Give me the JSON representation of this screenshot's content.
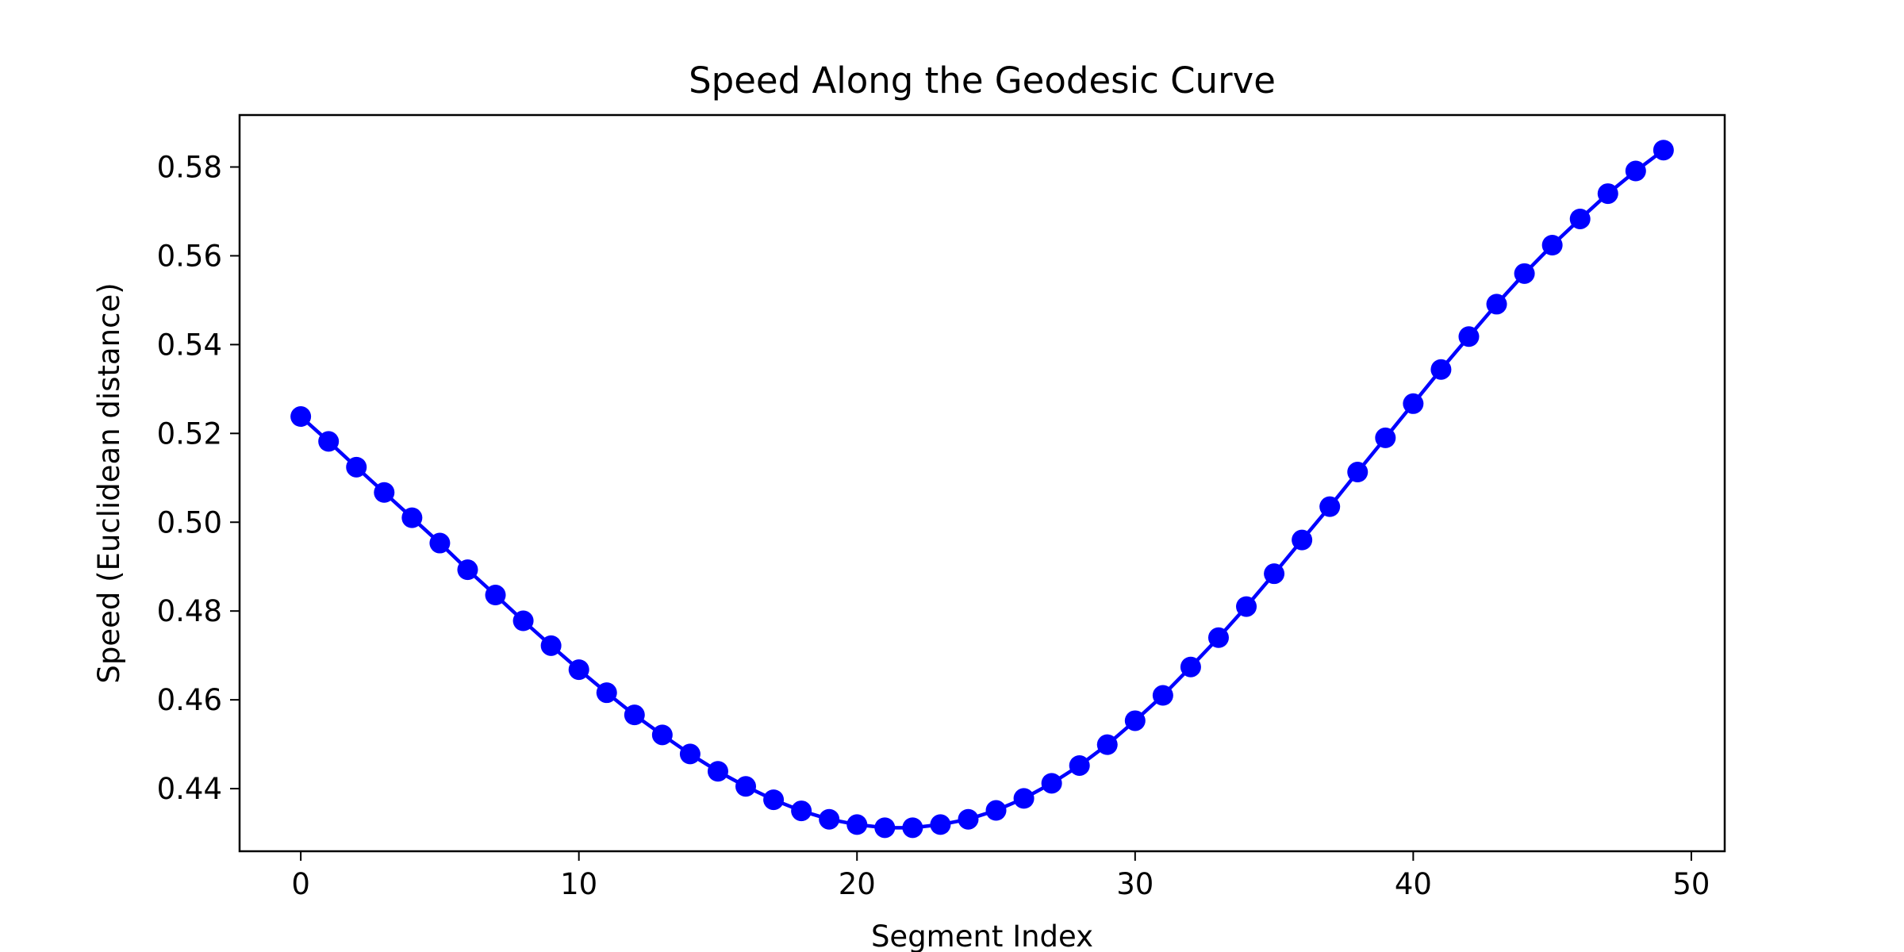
{
  "chart_data": {
    "type": "line",
    "title": "Speed Along the Geodesic Curve",
    "xlabel": "Segment Index",
    "ylabel": "Speed (Euclidean distance)",
    "xlim": [
      -2.2,
      51.2
    ],
    "ylim": [
      0.4259,
      0.5917
    ],
    "x_ticks": [
      0,
      10,
      20,
      30,
      40,
      50
    ],
    "y_ticks": [
      0.44,
      0.46,
      0.48,
      0.5,
      0.52,
      0.54,
      0.56,
      0.58
    ],
    "x_tick_labels": [
      "0",
      "10",
      "20",
      "30",
      "40",
      "50"
    ],
    "y_tick_labels": [
      "0.44",
      "0.46",
      "0.48",
      "0.50",
      "0.52",
      "0.54",
      "0.56",
      "0.58"
    ],
    "grid": false,
    "series": [
      {
        "color": "#0000ff",
        "marker": "circle",
        "x": [
          0,
          1,
          2,
          3,
          4,
          5,
          6,
          7,
          8,
          9,
          10,
          11,
          12,
          13,
          14,
          15,
          16,
          17,
          18,
          19,
          20,
          21,
          22,
          23,
          24,
          25,
          26,
          27,
          28,
          29,
          30,
          31,
          32,
          33,
          34,
          35,
          36,
          37,
          38,
          39,
          40,
          41,
          42,
          43,
          44,
          45,
          46,
          47,
          48,
          49
        ],
        "values": [
          0.5238,
          0.5182,
          0.5124,
          0.5067,
          0.501,
          0.4953,
          0.4893,
          0.4836,
          0.4778,
          0.4722,
          0.4668,
          0.4616,
          0.4566,
          0.4521,
          0.4478,
          0.4439,
          0.4405,
          0.4375,
          0.435,
          0.4331,
          0.4319,
          0.4312,
          0.4312,
          0.4319,
          0.4331,
          0.4351,
          0.4378,
          0.4412,
          0.4452,
          0.4499,
          0.4553,
          0.461,
          0.4674,
          0.474,
          0.481,
          0.4884,
          0.496,
          0.5035,
          0.5113,
          0.519,
          0.5267,
          0.5344,
          0.5418,
          0.5491,
          0.556,
          0.5624,
          0.5683,
          0.574,
          0.5791,
          0.5838
        ]
      }
    ]
  }
}
